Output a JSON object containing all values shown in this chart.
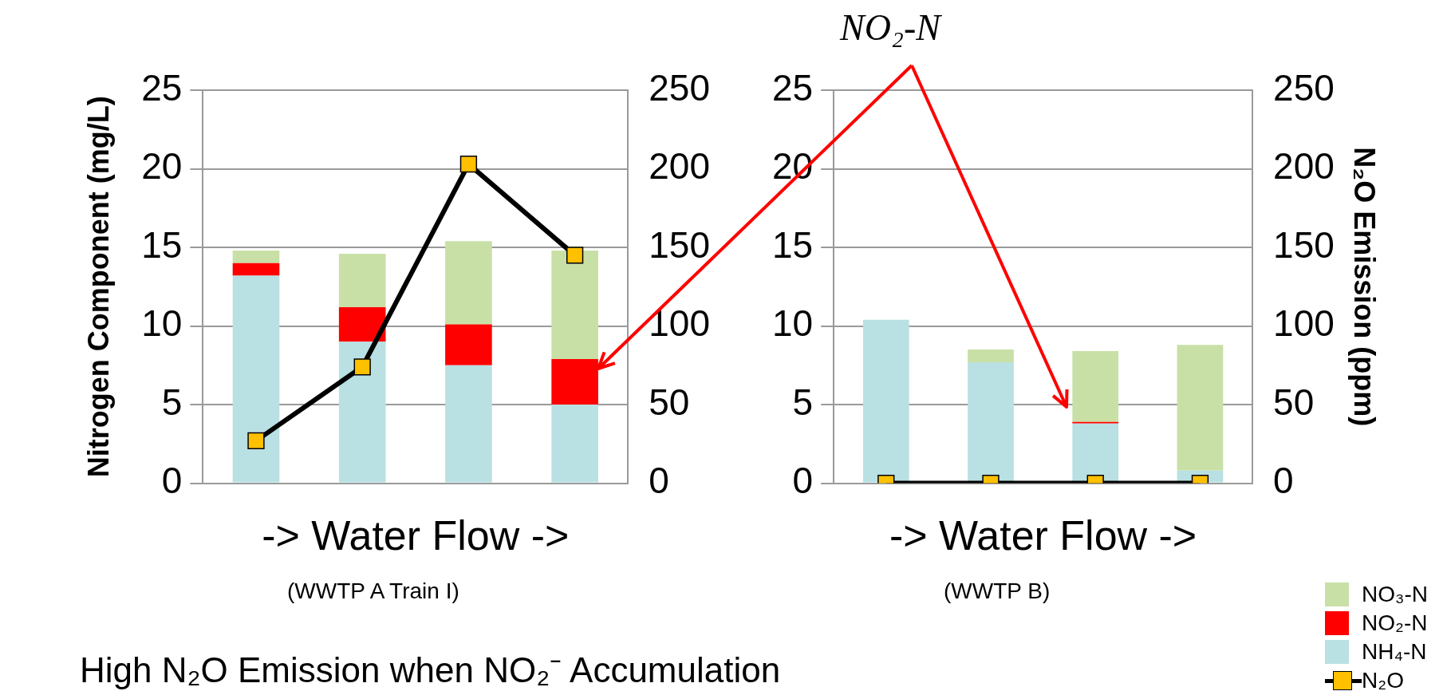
{
  "chart_data": [
    {
      "type": "bar",
      "stacked": true,
      "xlabel": "-> Water Flow ->",
      "ylabel": "Nitrogen Component (mg/L)",
      "categories": [
        null,
        null,
        null,
        null
      ],
      "series": [
        {
          "color": "#b9e0e3",
          "values": [
            13.2,
            9.0,
            7.5,
            5.0
          ]
        },
        {
          "color": "#ff0000",
          "values": [
            0.8,
            2.2,
            2.6,
            2.9
          ]
        },
        {
          "color": "#c8e0a6",
          "values": [
            0.8,
            3.4,
            5.3,
            6.9
          ]
        },
        {
          "type": "line",
          "axis": "y2",
          "color": "#ffc000",
          "values": [
            27,
            74,
            203,
            145
          ]
        }
      ],
      "ylim": [
        0,
        25
      ],
      "yticks": [
        0,
        5,
        10,
        15,
        20,
        25
      ],
      "y2lim": [
        0,
        250
      ],
      "y2ticks": [
        0,
        50,
        100,
        150,
        200,
        250
      ],
      "grid": "y",
      "marker": "square",
      "legend": false,
      "annotations": [
        "(WWTP A Train I)"
      ]
    },
    {
      "type": "bar",
      "stacked": true,
      "xlabel": "-> Water Flow ->",
      "y2label": "N₂O Emission (ppm)",
      "categories": [
        null,
        null,
        null,
        null
      ],
      "series": [
        {
          "name": "NH₄-N",
          "color": "#b9e0e3",
          "values": [
            10.4,
            7.7,
            3.8,
            0.8
          ]
        },
        {
          "name": "NO₂-N",
          "color": "#ff0000",
          "values": [
            0,
            0,
            0.1,
            0
          ]
        },
        {
          "name": "NO₃-N",
          "color": "#c8e0a6",
          "values": [
            0,
            0.8,
            4.5,
            8.0
          ]
        },
        {
          "name": "N₂O",
          "type": "line",
          "axis": "y2",
          "color": "#ffc000",
          "values": [
            0,
            0,
            0,
            0
          ]
        }
      ],
      "ylim": [
        0,
        25
      ],
      "yticks": [
        0,
        5,
        10,
        15,
        20,
        25
      ],
      "y2lim": [
        0,
        250
      ],
      "y2ticks": [
        0,
        50,
        100,
        150,
        200,
        250
      ],
      "grid": "y",
      "marker": "square",
      "legend": "bottom right",
      "annotations": [
        "(WWTP B)",
        "NO₂-N",
        "High N₂O Emission when NO₂⁻ Accumulation"
      ]
    }
  ]
}
